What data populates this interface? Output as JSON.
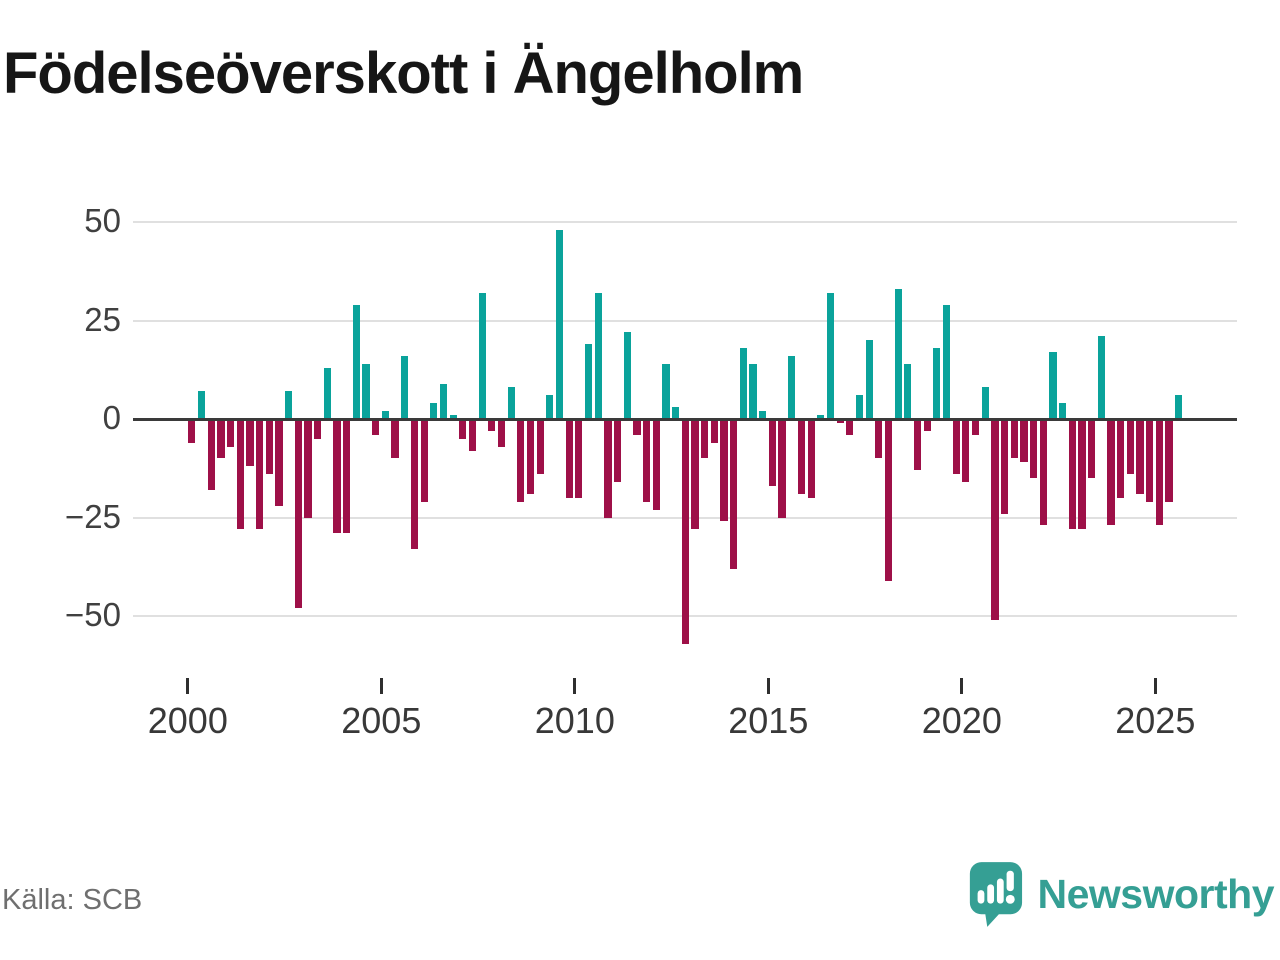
{
  "title": "Födelseöverskott i Ängelholm",
  "source": "Källa: SCB",
  "brand": {
    "name": "Newsworthy",
    "icon": "newsworthy-speech-bubble-chart-icon",
    "color": "#359f94"
  },
  "colors": {
    "positive_bar": "#0aa39b",
    "negative_bar": "#9e1048",
    "grid": "#e0e0e0",
    "axis": "#3a3a3a"
  },
  "y_axis": {
    "tick_values": [
      50,
      25,
      0,
      -25,
      -50
    ],
    "tick_labels": [
      "50",
      "25",
      "0",
      "−25",
      "−50"
    ]
  },
  "x_axis": {
    "tick_years": [
      2000,
      2005,
      2010,
      2015,
      2020,
      2025
    ]
  },
  "chart_data": {
    "type": "bar",
    "title": "Födelseöverskott i Ängelholm",
    "x_start": "2000 Q1",
    "x_end": "2025 Q3",
    "frequency": "quarterly",
    "ylim": [
      -62,
      55
    ],
    "grid": true,
    "legend": "none",
    "series_by_year": [
      {
        "year": 2000,
        "values": [
          -6,
          7,
          -18,
          -10
        ]
      },
      {
        "year": 2001,
        "values": [
          -7,
          -28,
          -12,
          -28
        ]
      },
      {
        "year": 2002,
        "values": [
          -14,
          -22,
          7,
          -48
        ]
      },
      {
        "year": 2003,
        "values": [
          -25,
          -5,
          13,
          -29
        ]
      },
      {
        "year": 2004,
        "values": [
          -29,
          29,
          14,
          -4
        ]
      },
      {
        "year": 2005,
        "values": [
          2,
          -10,
          16,
          -33
        ]
      },
      {
        "year": 2006,
        "values": [
          -21,
          4,
          9,
          1
        ]
      },
      {
        "year": 2007,
        "values": [
          -5,
          -8,
          32,
          -3
        ]
      },
      {
        "year": 2008,
        "values": [
          -7,
          8,
          -21,
          -19
        ]
      },
      {
        "year": 2009,
        "values": [
          -14,
          6,
          48,
          -20
        ]
      },
      {
        "year": 2010,
        "values": [
          -20,
          19,
          32,
          -25
        ]
      },
      {
        "year": 2011,
        "values": [
          -16,
          22,
          -4,
          -21
        ]
      },
      {
        "year": 2012,
        "values": [
          -23,
          14,
          3,
          -57
        ]
      },
      {
        "year": 2013,
        "values": [
          -28,
          -10,
          -6,
          -26
        ]
      },
      {
        "year": 2014,
        "values": [
          -38,
          18,
          14,
          2
        ]
      },
      {
        "year": 2015,
        "values": [
          -17,
          -25,
          16,
          -19
        ]
      },
      {
        "year": 2016,
        "values": [
          -20,
          1,
          32,
          -1
        ]
      },
      {
        "year": 2017,
        "values": [
          -4,
          6,
          20,
          -10
        ]
      },
      {
        "year": 2018,
        "values": [
          -41,
          33,
          14,
          -13
        ]
      },
      {
        "year": 2019,
        "values": [
          -3,
          18,
          29,
          -14
        ]
      },
      {
        "year": 2020,
        "values": [
          -16,
          -4,
          8,
          -51
        ]
      },
      {
        "year": 2021,
        "values": [
          -24,
          -10,
          -11,
          -15
        ]
      },
      {
        "year": 2022,
        "values": [
          -27,
          17,
          4,
          -28
        ]
      },
      {
        "year": 2023,
        "values": [
          -28,
          -15,
          21,
          -27
        ]
      },
      {
        "year": 2024,
        "values": [
          -20,
          -14,
          -19,
          -21
        ]
      },
      {
        "year": 2025,
        "values": [
          -27,
          -21,
          6
        ]
      }
    ]
  }
}
